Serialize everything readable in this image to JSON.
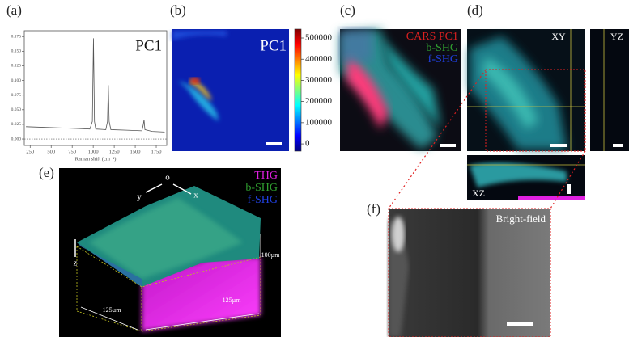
{
  "panel_labels": [
    "(a)",
    "(b)",
    "(c)",
    "(d)",
    "(e)",
    "(f)"
  ],
  "chart_data": [
    {
      "type": "line",
      "title": "PC1",
      "x_label": "Raman shift (cm⁻¹)",
      "x": [
        200,
        400,
        600,
        800,
        960,
        990,
        1003,
        1015,
        1030,
        1150,
        1170,
        1180,
        1190,
        1210,
        1400,
        1580,
        1595,
        1605,
        1615,
        1700,
        1850
      ],
      "values": [
        0.021,
        0.02,
        0.019,
        0.018,
        0.017,
        0.03,
        0.172,
        0.03,
        0.017,
        0.016,
        0.03,
        0.092,
        0.03,
        0.016,
        0.015,
        0.014,
        0.024,
        0.033,
        0.016,
        0.013,
        0.012
      ],
      "color": "#555555",
      "xlim": [
        180,
        1875
      ],
      "ylim": [
        -0.011,
        0.185
      ],
      "xticks": [
        250,
        500,
        750,
        1000,
        1250,
        1500,
        1750
      ],
      "yticks": [
        {
          "value": 0,
          "label": "0.000"
        },
        0.025,
        {
          "value": 0.05,
          "label": "0.050"
        },
        0.075,
        {
          "value": 0.1,
          "label": "0.100"
        },
        0.125,
        {
          "value": 0.15,
          "label": "0.150"
        },
        0.175
      ]
    },
    {
      "type": "colorbar",
      "title": "PC1",
      "colormap": "jet",
      "ylim": [
        -34000,
        542000
      ],
      "yticks": [
        0,
        100000,
        200000,
        300000,
        400000,
        500000
      ]
    }
  ],
  "panel_c": {
    "channels": [
      {
        "name": "CARS PC1",
        "color": "#e02020"
      },
      {
        "name": "b-SHG",
        "color": "#30a030"
      },
      {
        "name": "f-SHG",
        "color": "#2040e0"
      }
    ]
  },
  "panel_d": {
    "views": [
      "XY",
      "YZ",
      "XZ"
    ]
  },
  "panel_e": {
    "channels": [
      {
        "name": "THG",
        "color": "#e020e0"
      },
      {
        "name": "b-SHG",
        "color": "#30a030"
      },
      {
        "name": "f-SHG",
        "color": "#2040e0"
      }
    ],
    "axes": [
      "o",
      "x",
      "y",
      "z"
    ],
    "dimensions": [
      "100µm",
      "125µm",
      "125µm"
    ]
  },
  "panel_f": {
    "title": "Bright-field"
  }
}
